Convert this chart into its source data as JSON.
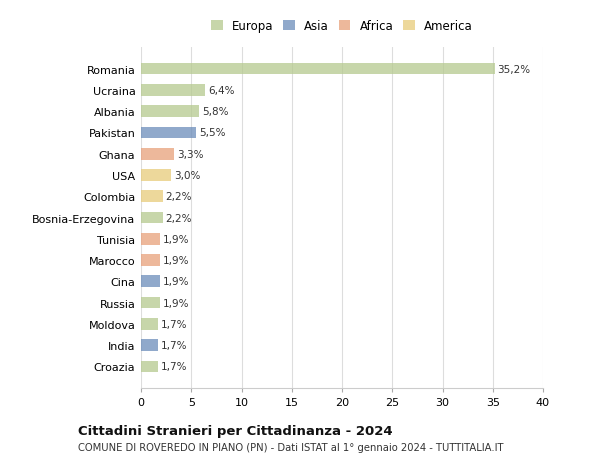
{
  "countries": [
    "Romania",
    "Ucraina",
    "Albania",
    "Pakistan",
    "Ghana",
    "USA",
    "Colombia",
    "Bosnia-Erzegovina",
    "Tunisia",
    "Marocco",
    "Cina",
    "Russia",
    "Moldova",
    "India",
    "Croazia"
  ],
  "values": [
    35.2,
    6.4,
    5.8,
    5.5,
    3.3,
    3.0,
    2.2,
    2.2,
    1.9,
    1.9,
    1.9,
    1.9,
    1.7,
    1.7,
    1.7
  ],
  "labels": [
    "35,2%",
    "6,4%",
    "5,8%",
    "5,5%",
    "3,3%",
    "3,0%",
    "2,2%",
    "2,2%",
    "1,9%",
    "1,9%",
    "1,9%",
    "1,9%",
    "1,7%",
    "1,7%",
    "1,7%"
  ],
  "continents": [
    "Europa",
    "Europa",
    "Europa",
    "Asia",
    "Africa",
    "America",
    "America",
    "Europa",
    "Africa",
    "Africa",
    "Asia",
    "Europa",
    "Europa",
    "Asia",
    "Europa"
  ],
  "continent_colors": {
    "Europa": "#b5c98e",
    "Asia": "#6b8cba",
    "Africa": "#e8a07a",
    "America": "#e8cc7a"
  },
  "legend_items": [
    "Europa",
    "Asia",
    "Africa",
    "America"
  ],
  "legend_colors": [
    "#b5c98e",
    "#6b8cba",
    "#e8a07a",
    "#e8cc7a"
  ],
  "xlim": [
    0,
    40
  ],
  "xticks": [
    0,
    5,
    10,
    15,
    20,
    25,
    30,
    35,
    40
  ],
  "title": "Cittadini Stranieri per Cittadinanza - 2024",
  "subtitle": "COMUNE DI ROVEREDO IN PIANO (PN) - Dati ISTAT al 1° gennaio 2024 - TUTTITALIA.IT",
  "background_color": "#ffffff",
  "grid_color": "#dddddd",
  "bar_alpha": 0.75,
  "bar_height": 0.55,
  "label_fontsize": 7.5,
  "ytick_fontsize": 8.0,
  "xtick_fontsize": 8.0,
  "legend_fontsize": 8.5,
  "title_fontsize": 9.5,
  "subtitle_fontsize": 7.2
}
